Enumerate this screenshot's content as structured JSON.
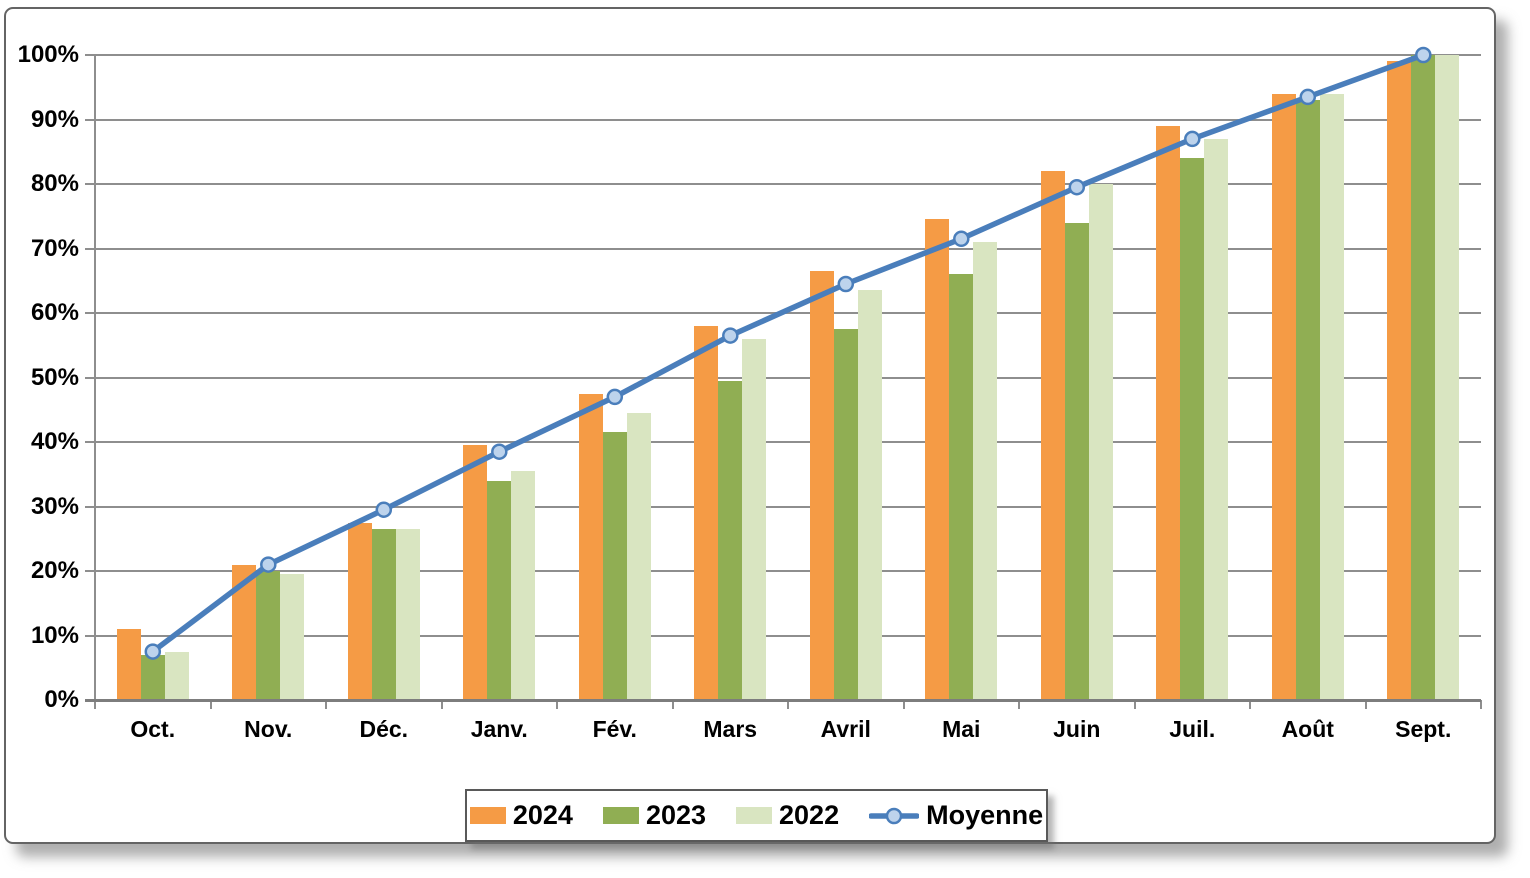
{
  "chart_data": {
    "type": "bar+line",
    "title": "",
    "xlabel": "",
    "ylabel": "",
    "ylim": [
      0,
      100
    ],
    "grid": true,
    "legend_position": "bottom",
    "y_tick_labels": [
      "100%",
      "90%",
      "80%",
      "70%",
      "60%",
      "50%",
      "40%",
      "30%",
      "20%",
      "10%",
      "0%"
    ],
    "categories": [
      "Oct.",
      "Nov.",
      "Déc.",
      "Janv.",
      "Fév.",
      "Mars",
      "Avril",
      "Mai",
      "Juin",
      "Juil.",
      "Août",
      "Sept."
    ],
    "series": [
      {
        "name": "2024",
        "type": "bar",
        "color": "#F59B45",
        "values": [
          11,
          21,
          27.5,
          39.5,
          47.5,
          58,
          66.5,
          74.5,
          82,
          89,
          94,
          99
        ]
      },
      {
        "name": "2023",
        "type": "bar",
        "color": "#90AE53",
        "values": [
          7,
          20,
          26.5,
          34,
          41.5,
          49.5,
          57.5,
          66,
          74,
          84,
          93,
          100
        ]
      },
      {
        "name": "2022",
        "type": "bar",
        "color": "#D9E5C1",
        "values": [
          7.5,
          19.5,
          26.5,
          35.5,
          44.5,
          56,
          63.5,
          71,
          80,
          87,
          94,
          100
        ]
      },
      {
        "name": "Moyenne",
        "type": "line",
        "color": "#4A7EBB",
        "marker_fill": "#BDD3EC",
        "values": [
          7.5,
          21,
          29.5,
          38.5,
          47,
          56.5,
          64.5,
          71.5,
          79.5,
          87,
          93.5,
          100
        ]
      }
    ],
    "colors": {
      "gridline": "#8e8e8e",
      "axis": "#7d7d7d",
      "text": "#000000",
      "panel_border": "#646464"
    }
  }
}
